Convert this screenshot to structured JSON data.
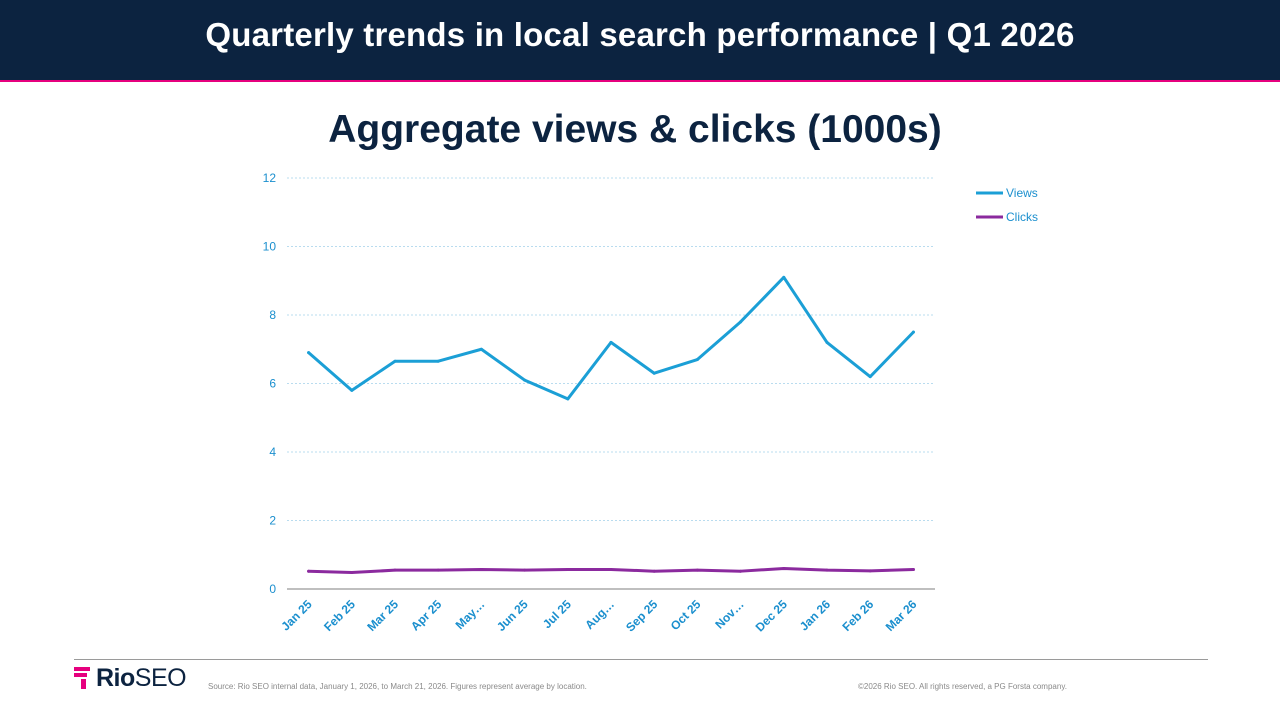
{
  "header": {
    "title": "Quarterly trends in local search performance | Q1 2026"
  },
  "colors": {
    "header_bg": "#0c2340",
    "accent": "#e6007e",
    "views": "#1b9fd6",
    "clicks": "#8b2a9e",
    "axis_text": "#1b8fce"
  },
  "chart_data": {
    "type": "line",
    "title": "Aggregate views & clicks (1000s)",
    "xlabel": "",
    "ylabel": "",
    "categories": [
      "Jan 25",
      "Feb 25",
      "Mar 25",
      "Apr 25",
      "May…",
      "Jun 25",
      "Jul 25",
      "Aug…",
      "Sep 25",
      "Oct 25",
      "Nov…",
      "Dec 25",
      "Jan 26",
      "Feb 26",
      "Mar 26"
    ],
    "series": [
      {
        "name": "Views",
        "color": "#1b9fd6",
        "values": [
          6.9,
          5.8,
          6.65,
          6.65,
          7.0,
          6.1,
          5.55,
          7.2,
          6.3,
          6.7,
          7.8,
          9.1,
          7.2,
          6.2,
          7.5
        ]
      },
      {
        "name": "Clicks",
        "color": "#8b2a9e",
        "values": [
          0.52,
          0.48,
          0.55,
          0.55,
          0.57,
          0.55,
          0.57,
          0.57,
          0.52,
          0.55,
          0.52,
          0.6,
          0.55,
          0.53,
          0.57
        ]
      }
    ],
    "ylim": [
      0,
      12
    ],
    "yticks": [
      0,
      2,
      4,
      6,
      8,
      10,
      12
    ],
    "grid": true,
    "legend_position": "top-right"
  },
  "footer": {
    "logo_bold": "Rio",
    "logo_light": "SEO",
    "source": "Source: Rio SEO internal data, January 1, 2026, to March 21, 2026. Figures represent average by location.",
    "copyright": "©2026 Rio SEO. All rights reserved, a PG Forsta company."
  }
}
